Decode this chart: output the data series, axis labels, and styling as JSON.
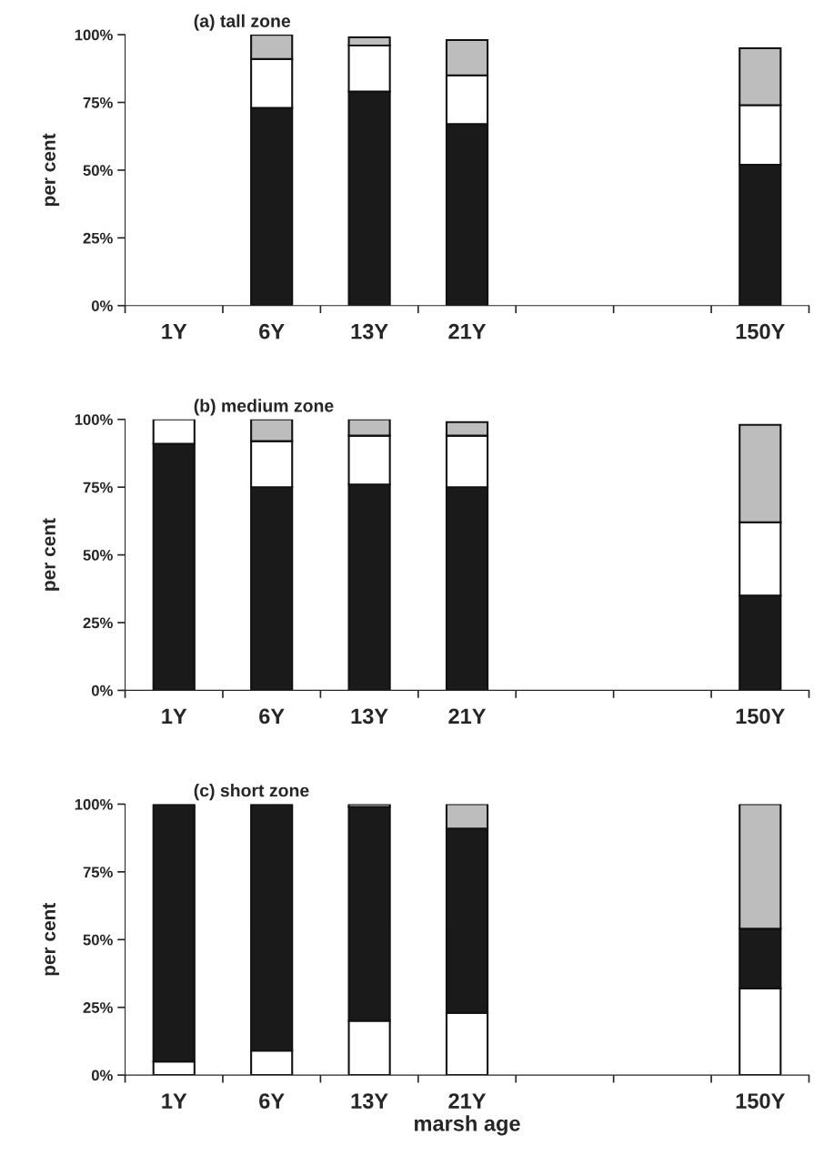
{
  "chart_data": [
    {
      "type": "bar",
      "stacked": true,
      "title": "(a) tall zone",
      "ylabel": "per cent",
      "categories": [
        "1Y",
        "6Y",
        "13Y",
        "21Y",
        null,
        null,
        "150Y"
      ],
      "ylim": [
        0,
        100
      ],
      "yticks": [
        {
          "value": 0,
          "label": "0%"
        },
        {
          "value": 25,
          "label": "25%"
        },
        {
          "value": 50,
          "label": "50%"
        },
        {
          "value": 75,
          "label": "75%"
        },
        {
          "value": 100,
          "label": "100%"
        }
      ],
      "grid": false,
      "legend": false,
      "series": [
        {
          "color": "#1a1a1a",
          "values": [
            null,
            73,
            79,
            67,
            null,
            null,
            52
          ]
        },
        {
          "color": "#ffffff",
          "values": [
            null,
            18,
            17,
            18,
            null,
            null,
            22
          ]
        },
        {
          "color": "#bdbdbd",
          "values": [
            null,
            9,
            3,
            13,
            null,
            null,
            21
          ]
        }
      ]
    },
    {
      "type": "bar",
      "stacked": true,
      "title": "(b) medium zone",
      "ylabel": "per cent",
      "categories": [
        "1Y",
        "6Y",
        "13Y",
        "21Y",
        null,
        null,
        "150Y"
      ],
      "ylim": [
        0,
        100
      ],
      "yticks": [
        {
          "value": 0,
          "label": "0%"
        },
        {
          "value": 25,
          "label": "25%"
        },
        {
          "value": 50,
          "label": "50%"
        },
        {
          "value": 75,
          "label": "75%"
        },
        {
          "value": 100,
          "label": "100%"
        }
      ],
      "grid": false,
      "legend": false,
      "series": [
        {
          "color": "#1a1a1a",
          "values": [
            91,
            75,
            76,
            75,
            null,
            null,
            35
          ]
        },
        {
          "color": "#ffffff",
          "values": [
            9,
            17,
            18,
            19,
            null,
            null,
            27
          ]
        },
        {
          "color": "#bdbdbd",
          "values": [
            null,
            8,
            6,
            5,
            null,
            null,
            36
          ]
        }
      ]
    },
    {
      "type": "bar",
      "stacked": true,
      "title": "(c) short zone",
      "ylabel": "per cent",
      "xlabel": "marsh age",
      "categories": [
        "1Y",
        "6Y",
        "13Y",
        "21Y",
        null,
        null,
        "150Y"
      ],
      "ylim": [
        0,
        100
      ],
      "yticks": [
        {
          "value": 0,
          "label": "0%"
        },
        {
          "value": 25,
          "label": "25%"
        },
        {
          "value": 50,
          "label": "50%"
        },
        {
          "value": 75,
          "label": "75%"
        },
        {
          "value": 100,
          "label": "100%"
        }
      ],
      "grid": false,
      "legend": false,
      "series": [
        {
          "color": "#ffffff",
          "values": [
            5,
            9,
            20,
            23,
            null,
            null,
            32
          ]
        },
        {
          "color": "#1a1a1a",
          "values": [
            95,
            91,
            79,
            68,
            null,
            null,
            22
          ]
        },
        {
          "color": "#bdbdbd",
          "values": [
            null,
            null,
            1,
            9,
            null,
            null,
            46
          ]
        }
      ]
    }
  ]
}
